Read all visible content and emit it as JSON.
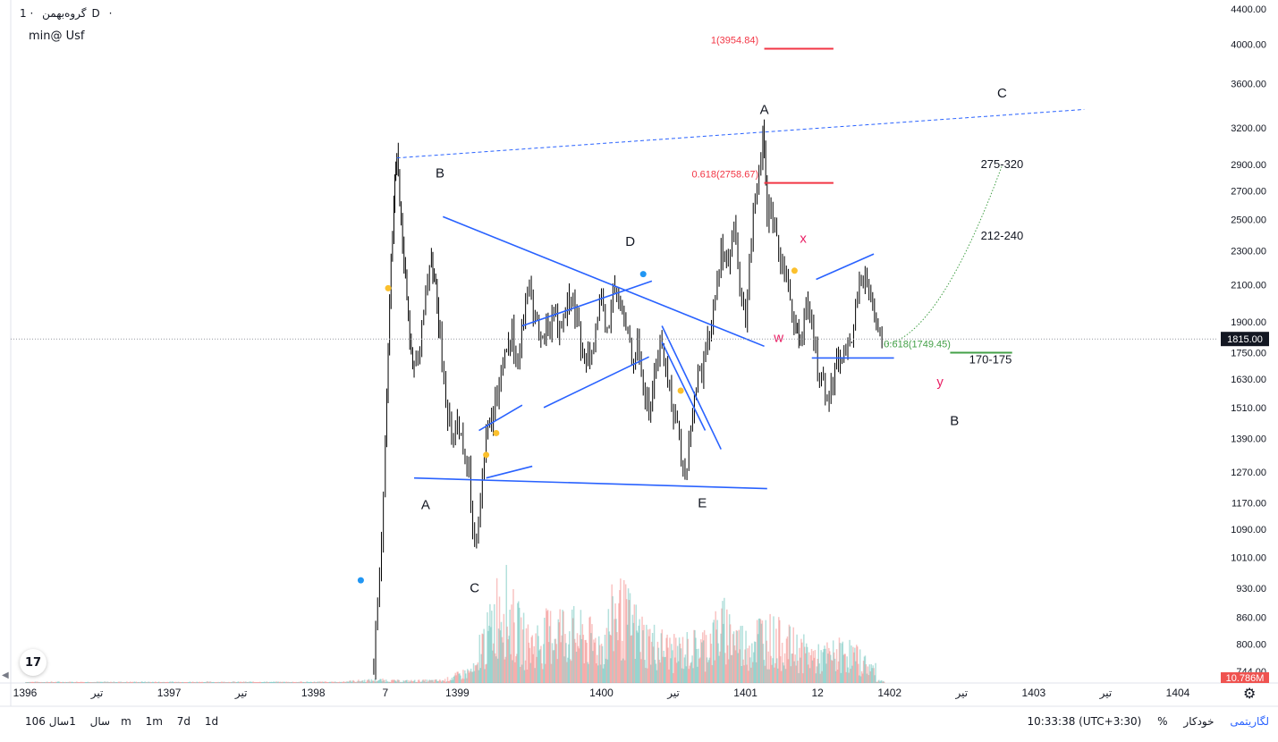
{
  "legend": {
    "symbol": "گروه‌بهمن",
    "interval": "1D",
    "dot": "·"
  },
  "note": "min@ Usf",
  "chart_data": {
    "type": "candlestick",
    "scale": "log",
    "y_ticks": [
      "4400.00",
      "4000.00",
      "3600.00",
      "3200.00",
      "2900.00",
      "2700.00",
      "2500.00",
      "2300.00",
      "2100.00",
      "1900.00",
      "1750.00",
      "1630.00",
      "1510.00",
      "1390.00",
      "1270.00",
      "1170.00",
      "1090.00",
      "1010.00",
      "930.00",
      "860.00",
      "800.00",
      "744.00"
    ],
    "x_ticks": [
      "1396",
      "تیر",
      "1397",
      "تیر",
      "1398",
      "7",
      "1399",
      "1400",
      "تیر",
      "1401",
      "12",
      "1402",
      "تیر",
      "1403",
      "تیر",
      "1404"
    ],
    "last_price": "1815.00",
    "volume_label": "10.786M",
    "price_path": [
      [
        1398.42,
        760
      ],
      [
        1398.46,
        950
      ],
      [
        1398.5,
        1400
      ],
      [
        1398.53,
        2000
      ],
      [
        1398.56,
        2600
      ],
      [
        1398.58,
        2980
      ],
      [
        1398.61,
        2450
      ],
      [
        1398.64,
        2200
      ],
      [
        1398.67,
        1800
      ],
      [
        1398.7,
        1650
      ],
      [
        1398.74,
        1750
      ],
      [
        1398.78,
        2050
      ],
      [
        1398.82,
        2300
      ],
      [
        1398.85,
        2060
      ],
      [
        1398.88,
        1800
      ],
      [
        1398.92,
        1550
      ],
      [
        1398.96,
        1400
      ],
      [
        1399.0,
        1450
      ],
      [
        1399.04,
        1380
      ],
      [
        1399.08,
        1250
      ],
      [
        1399.12,
        1050
      ],
      [
        1399.16,
        1200
      ],
      [
        1399.2,
        1380
      ],
      [
        1399.25,
        1500
      ],
      [
        1399.29,
        1620
      ],
      [
        1399.33,
        1780
      ],
      [
        1399.38,
        1850
      ],
      [
        1399.42,
        1700
      ],
      [
        1399.46,
        1920
      ],
      [
        1399.5,
        2080
      ],
      [
        1399.54,
        1930
      ],
      [
        1399.58,
        1800
      ],
      [
        1399.63,
        1880
      ],
      [
        1399.67,
        1960
      ],
      [
        1399.71,
        1850
      ],
      [
        1399.75,
        1980
      ],
      [
        1399.79,
        2020
      ],
      [
        1399.83,
        1900
      ],
      [
        1399.87,
        1720
      ],
      [
        1399.92,
        1780
      ],
      [
        1399.96,
        1880
      ],
      [
        1400.0,
        1960
      ],
      [
        1400.04,
        1850
      ],
      [
        1400.08,
        2060
      ],
      [
        1400.12,
        2000
      ],
      [
        1400.17,
        1880
      ],
      [
        1400.21,
        1750
      ],
      [
        1400.25,
        1800
      ],
      [
        1400.29,
        1600
      ],
      [
        1400.33,
        1480
      ],
      [
        1400.38,
        1720
      ],
      [
        1400.42,
        1800
      ],
      [
        1400.46,
        1620
      ],
      [
        1400.5,
        1500
      ],
      [
        1400.54,
        1400
      ],
      [
        1400.58,
        1230
      ],
      [
        1400.62,
        1450
      ],
      [
        1400.67,
        1650
      ],
      [
        1400.71,
        1700
      ],
      [
        1400.75,
        1850
      ],
      [
        1400.79,
        2000
      ],
      [
        1400.83,
        2350
      ],
      [
        1400.88,
        2200
      ],
      [
        1400.92,
        2450
      ],
      [
        1400.96,
        2050
      ],
      [
        1401.0,
        1920
      ],
      [
        1401.04,
        2400
      ],
      [
        1401.08,
        2700
      ],
      [
        1401.12,
        3120
      ],
      [
        1401.15,
        2550
      ],
      [
        1401.19,
        2450
      ],
      [
        1401.23,
        2300
      ],
      [
        1401.27,
        2200
      ],
      [
        1401.31,
        2000
      ],
      [
        1401.35,
        1900
      ],
      [
        1401.38,
        1780
      ],
      [
        1401.42,
        1980
      ],
      [
        1401.46,
        1850
      ],
      [
        1401.5,
        1700
      ],
      [
        1401.54,
        1620
      ],
      [
        1401.58,
        1560
      ],
      [
        1401.62,
        1680
      ],
      [
        1401.67,
        1760
      ],
      [
        1401.71,
        1780
      ],
      [
        1401.75,
        1850
      ],
      [
        1401.79,
        2180
      ],
      [
        1401.83,
        2100
      ],
      [
        1401.87,
        2000
      ],
      [
        1401.92,
        1920
      ],
      [
        1401.96,
        1815
      ]
    ],
    "volume_path": [
      [
        1398.2,
        0.03
      ],
      [
        1398.45,
        0.06
      ],
      [
        1398.6,
        0.04
      ],
      [
        1398.9,
        0.05
      ],
      [
        1399.2,
        0.35
      ],
      [
        1399.3,
        0.7
      ],
      [
        1399.4,
        0.45
      ],
      [
        1399.5,
        0.3
      ],
      [
        1399.7,
        0.45
      ],
      [
        1400.0,
        0.3
      ],
      [
        1400.1,
        0.6
      ],
      [
        1400.3,
        0.35
      ],
      [
        1400.5,
        0.25
      ],
      [
        1400.7,
        0.3
      ],
      [
        1400.85,
        0.45
      ],
      [
        1401.0,
        0.3
      ],
      [
        1401.1,
        0.4
      ],
      [
        1401.3,
        0.3
      ],
      [
        1401.5,
        0.2
      ],
      [
        1401.7,
        0.25
      ],
      [
        1401.9,
        0.1
      ]
    ],
    "annotations": {
      "wave_labels": [
        {
          "text": "A",
          "x": 1398.78,
          "y": 1150,
          "color": "#131722"
        },
        {
          "text": "B",
          "x": 1398.88,
          "y": 2800,
          "color": "#131722"
        },
        {
          "text": "C",
          "x": 1399.12,
          "y": 920,
          "color": "#131722"
        },
        {
          "text": "D",
          "x": 1400.2,
          "y": 2330,
          "color": "#131722"
        },
        {
          "text": "E",
          "x": 1400.7,
          "y": 1155,
          "color": "#131722"
        },
        {
          "text": "A",
          "x": 1401.13,
          "y": 3320,
          "color": "#131722"
        },
        {
          "text": "C",
          "x": 1402.78,
          "y": 3470,
          "color": "#131722"
        },
        {
          "text": "B",
          "x": 1402.45,
          "y": 1440,
          "color": "#131722"
        },
        {
          "text": "x",
          "x": 1401.4,
          "y": 2350,
          "color": "#e91e63"
        },
        {
          "text": "w",
          "x": 1401.23,
          "y": 1800,
          "color": "#e91e63"
        },
        {
          "text": "y",
          "x": 1402.35,
          "y": 1600,
          "color": "#e91e63"
        }
      ],
      "targets": [
        {
          "text": "275-320",
          "x": 1402.78,
          "y": 2870
        },
        {
          "text": "212-240",
          "x": 1402.78,
          "y": 2370
        },
        {
          "text": "170-175",
          "x": 1402.7,
          "y": 1700
        }
      ],
      "fib_levels": [
        {
          "text": "1(3954.84)",
          "price": 3954.84,
          "color": "#f23645"
        },
        {
          "text": "0.618(2758.67)",
          "price": 2758.67,
          "color": "#f23645"
        },
        {
          "text": "0.618(1749.45)",
          "price": 1749.45,
          "color": "#43a047"
        }
      ]
    }
  },
  "bottom": {
    "ranges": [
      "10سال",
      "1سال",
      "6m",
      "1m",
      "7d",
      "1d"
    ],
    "time": "10:33:38 (UTC+3:30)",
    "percent": "%",
    "log": "لگاریتمی",
    "auto": "خودکار"
  },
  "logo": "17"
}
